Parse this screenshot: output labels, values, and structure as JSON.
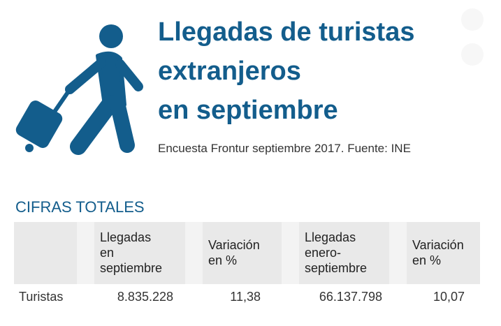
{
  "header": {
    "title": [
      "Llegadas de turistas",
      "extranjeros",
      "en septiembre"
    ],
    "subtitle": "Encuesta Frontur septiembre 2017. Fuente: INE"
  },
  "section": "CIFRAS TOTALES",
  "table": {
    "columns": [
      [
        "Llegadas",
        "en",
        "septiembre"
      ],
      [
        "Variación",
        "en %"
      ],
      [
        "Llegadas",
        "enero-",
        "septiembre"
      ],
      [
        "Variación",
        "en %"
      ]
    ],
    "rows": [
      {
        "label": "Turistas",
        "values": [
          "8.835.228",
          "11,38",
          "66.137.798",
          "10,07"
        ]
      }
    ]
  }
}
